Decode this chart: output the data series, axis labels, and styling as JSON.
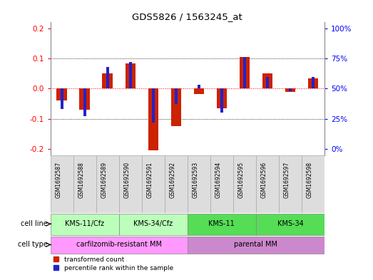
{
  "title": "GDS5826 / 1563245_at",
  "samples": [
    "GSM1692587",
    "GSM1692588",
    "GSM1692589",
    "GSM1692590",
    "GSM1692591",
    "GSM1692592",
    "GSM1692593",
    "GSM1692594",
    "GSM1692595",
    "GSM1692596",
    "GSM1692597",
    "GSM1692598"
  ],
  "transformed_count": [
    -0.04,
    -0.07,
    0.05,
    0.085,
    -0.205,
    -0.125,
    -0.018,
    -0.065,
    0.105,
    0.05,
    -0.01,
    0.035
  ],
  "percentile_rank": [
    33,
    27,
    68,
    72,
    22,
    37,
    53,
    30,
    76,
    60,
    48,
    60
  ],
  "cell_lines": [
    {
      "label": "KMS-11/Cfz",
      "start": 0,
      "end": 3,
      "color": "#bbffbb"
    },
    {
      "label": "KMS-34/Cfz",
      "start": 3,
      "end": 6,
      "color": "#bbffbb"
    },
    {
      "label": "KMS-11",
      "start": 6,
      "end": 9,
      "color": "#55dd55"
    },
    {
      "label": "KMS-34",
      "start": 9,
      "end": 12,
      "color": "#55dd55"
    }
  ],
  "cell_types": [
    {
      "label": "carfilzomib-resistant MM",
      "start": 0,
      "end": 6,
      "color": "#ff99ff"
    },
    {
      "label": "parental MM",
      "start": 6,
      "end": 12,
      "color": "#cc88cc"
    }
  ],
  "ylim": [
    -0.22,
    0.22
  ],
  "yticks": [
    -0.2,
    -0.1,
    0.0,
    0.1,
    0.2
  ],
  "right_yticks": [
    0,
    25,
    50,
    75,
    100
  ],
  "bar_color": "#cc2200",
  "percentile_color": "#2222cc",
  "background_color": "#ffffff"
}
